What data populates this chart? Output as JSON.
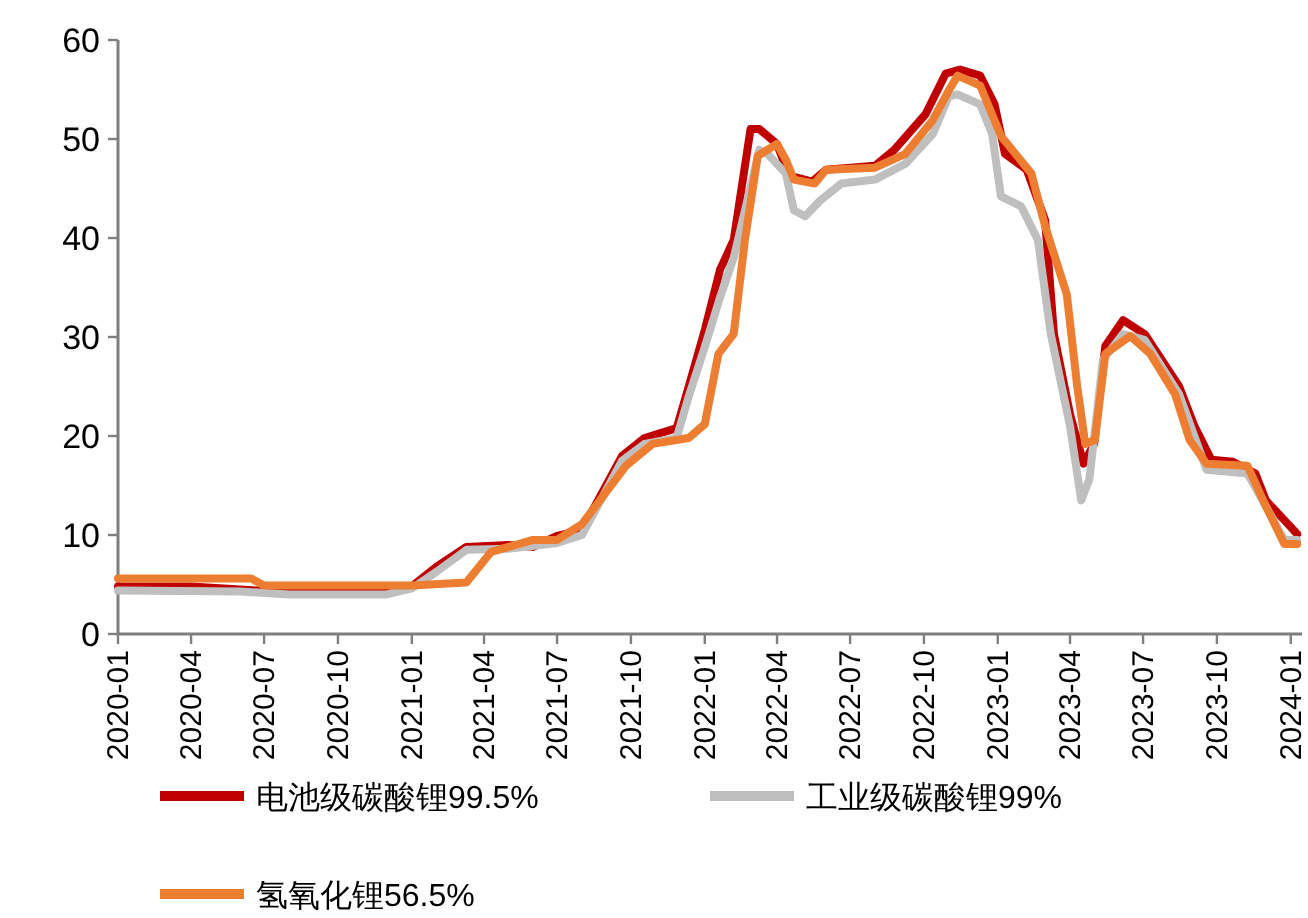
{
  "chart_data": {
    "type": "line",
    "legend": "bottom",
    "line_style": "solid",
    "marker": "none",
    "grid": false,
    "xlim": [
      "2020-01-01",
      "2024-01-15"
    ],
    "xticks": [
      "2020-01",
      "2020-04",
      "2020-07",
      "2020-10",
      "2021-01",
      "2021-04",
      "2021-07",
      "2021-10",
      "2022-01",
      "2022-04",
      "2022-07",
      "2022-10",
      "2023-01",
      "2023-04",
      "2023-07",
      "2023-10",
      "2024-01"
    ],
    "ylim": [
      0,
      60
    ],
    "yticks": [
      0,
      10,
      20,
      30,
      40,
      50,
      60
    ],
    "series": [
      {
        "name": "电池级碳酸锂99.5%",
        "color": "#c00000",
        "x": [
          "2020-01-01",
          "2020-04-01",
          "2020-06-01",
          "2020-08-01",
          "2020-11-01",
          "2021-01-01",
          "2021-02-01",
          "2021-03-10",
          "2021-05-01",
          "2021-06-01",
          "2021-07-01",
          "2021-08-01",
          "2021-09-20",
          "2021-10-18",
          "2021-11-27",
          "2021-12-12",
          "2022-01-01",
          "2022-01-20",
          "2022-02-06",
          "2022-02-27",
          "2022-03-10",
          "2022-04-01",
          "2022-04-16",
          "2022-05-15",
          "2022-06-01",
          "2022-08-01",
          "2022-08-25",
          "2022-10-03",
          "2022-10-28",
          "2022-11-15",
          "2022-12-10",
          "2022-12-28",
          "2023-01-10",
          "2023-02-06",
          "2023-03-01",
          "2023-03-12",
          "2023-04-01",
          "2023-04-18",
          "2023-05-01",
          "2023-05-15",
          "2023-06-06",
          "2023-07-03",
          "2023-08-15",
          "2023-09-03",
          "2023-09-24",
          "2023-10-21",
          "2023-11-18",
          "2023-12-01",
          "2023-12-24",
          "2024-01-09"
        ],
        "values": [
          4.8,
          4.8,
          4.5,
          4.2,
          4.2,
          4.8,
          6.8,
          8.8,
          9.0,
          8.8,
          9.9,
          10.5,
          18.0,
          19.8,
          20.8,
          25,
          30.7,
          36.8,
          39.8,
          51,
          51,
          49.5,
          46.3,
          45.7,
          46.9,
          47.3,
          48.9,
          52.5,
          56.6,
          57,
          56.4,
          53.5,
          48.5,
          46.9,
          41.8,
          30.3,
          22.2,
          17.2,
          19.2,
          29.1,
          31.7,
          30.3,
          25,
          21,
          17.6,
          17.4,
          16.2,
          13.5,
          11.5,
          10.1
        ]
      },
      {
        "name": "工业级碳酸锂99%",
        "color": "#bfbfbf",
        "x": [
          "2020-01-01",
          "2020-06-01",
          "2020-08-01",
          "2020-12-01",
          "2021-01-01",
          "2021-02-01",
          "2021-03-10",
          "2021-05-01",
          "2021-07-01",
          "2021-08-01",
          "2021-09-20",
          "2021-10-18",
          "2021-11-27",
          "2021-12-12",
          "2022-01-01",
          "2022-01-20",
          "2022-02-06",
          "2022-03-10",
          "2022-03-20",
          "2022-04-12",
          "2022-04-22",
          "2022-05-06",
          "2022-05-25",
          "2022-06-20",
          "2022-08-01",
          "2022-09-08",
          "2022-10-12",
          "2022-11-01",
          "2022-11-12",
          "2022-12-10",
          "2022-12-25",
          "2023-01-05",
          "2023-01-30",
          "2023-02-20",
          "2023-03-08",
          "2023-04-01",
          "2023-04-15",
          "2023-04-25",
          "2023-05-12",
          "2023-06-06",
          "2023-07-03",
          "2023-08-15",
          "2023-09-18",
          "2023-11-08",
          "2023-12-01",
          "2023-12-24",
          "2024-01-09"
        ],
        "values": [
          4.4,
          4.3,
          4.0,
          4.0,
          4.6,
          6.3,
          8.5,
          8.6,
          9.2,
          10.0,
          17.5,
          19.2,
          19.8,
          24,
          29,
          34,
          38,
          48.9,
          48.5,
          46.5,
          42.8,
          42.2,
          43.8,
          45.5,
          45.9,
          47.5,
          50.5,
          54.3,
          54.5,
          53.5,
          50.5,
          44.2,
          43.2,
          39.8,
          30.3,
          21,
          13.5,
          15.6,
          27.7,
          30.3,
          29.7,
          24.2,
          16.6,
          16.2,
          12.9,
          9.5,
          9.5
        ]
      },
      {
        "name": "氢氧化锂56.5%",
        "color": "#ed7d31",
        "x": [
          "2020-01-01",
          "2020-06-15",
          "2020-07-01",
          "2021-01-01",
          "2021-03-10",
          "2021-04-10",
          "2021-06-01",
          "2021-07-01",
          "2021-08-01",
          "2021-09-25",
          "2021-10-28",
          "2021-12-12",
          "2022-01-01",
          "2022-01-18",
          "2022-02-06",
          "2022-02-20",
          "2022-03-08",
          "2022-04-01",
          "2022-04-12",
          "2022-04-22",
          "2022-05-18",
          "2022-06-01",
          "2022-08-01",
          "2022-09-08",
          "2022-10-12",
          "2022-11-01",
          "2022-11-12",
          "2022-12-10",
          "2023-01-05",
          "2023-02-12",
          "2023-03-01",
          "2023-03-28",
          "2023-04-10",
          "2023-04-20",
          "2023-05-02",
          "2023-05-15",
          "2023-06-15",
          "2023-07-10",
          "2023-08-10",
          "2023-08-28",
          "2023-09-18",
          "2023-11-08",
          "2023-12-01",
          "2023-12-24",
          "2024-01-09"
        ],
        "values": [
          5.6,
          5.6,
          4.9,
          4.9,
          5.2,
          8.3,
          9.5,
          9.5,
          11.1,
          17,
          19.2,
          19.8,
          21.2,
          28.3,
          30.3,
          39.8,
          48.3,
          49.5,
          47.9,
          45.9,
          45.5,
          46.9,
          47.1,
          48.5,
          51.9,
          54.9,
          56.4,
          55.4,
          50.3,
          46.5,
          41.2,
          34.3,
          25,
          19.2,
          19.6,
          28.3,
          30.1,
          28.3,
          24.2,
          19.6,
          17.2,
          17,
          12.9,
          9.1,
          9.1
        ]
      }
    ]
  }
}
